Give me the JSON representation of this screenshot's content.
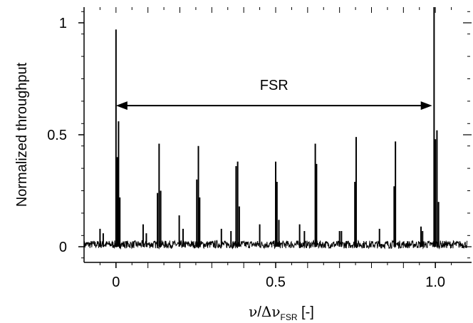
{
  "chart_data": {
    "type": "line",
    "title": "",
    "ylabel": "Normalized throughput",
    "xlabel": {
      "nu": "ν",
      "slash": "/",
      "delta": "Δ",
      "nu2": "ν",
      "sub": "FSR",
      "units": " [-]"
    },
    "xlim": [
      -0.1,
      1.1
    ],
    "ylim": [
      -0.07,
      1.07
    ],
    "x_ticks": [
      {
        "value": 0,
        "label": "0"
      },
      {
        "value": 0.5,
        "label": "0.5"
      },
      {
        "value": 1.0,
        "label": "1.0"
      }
    ],
    "y_ticks": [
      {
        "value": 0,
        "label": "0"
      },
      {
        "value": 0.5,
        "label": "0.5"
      },
      {
        "value": 1,
        "label": "1"
      }
    ],
    "grid": false,
    "noise_floor": 0.01,
    "peaks": [
      {
        "x": 0.0,
        "y": 0.97
      },
      {
        "x": 0.004,
        "y": 0.4
      },
      {
        "x": 0.008,
        "y": 0.56
      },
      {
        "x": 0.012,
        "y": 0.22
      },
      {
        "x": -0.05,
        "y": 0.08
      },
      {
        "x": -0.04,
        "y": 0.06
      },
      {
        "x": 0.085,
        "y": 0.1
      },
      {
        "x": 0.095,
        "y": 0.06
      },
      {
        "x": 0.13,
        "y": 0.24
      },
      {
        "x": 0.135,
        "y": 0.46
      },
      {
        "x": 0.14,
        "y": 0.25
      },
      {
        "x": 0.198,
        "y": 0.14
      },
      {
        "x": 0.21,
        "y": 0.08
      },
      {
        "x": 0.253,
        "y": 0.3
      },
      {
        "x": 0.258,
        "y": 0.45
      },
      {
        "x": 0.262,
        "y": 0.22
      },
      {
        "x": 0.33,
        "y": 0.08
      },
      {
        "x": 0.36,
        "y": 0.07
      },
      {
        "x": 0.376,
        "y": 0.36
      },
      {
        "x": 0.381,
        "y": 0.38
      },
      {
        "x": 0.386,
        "y": 0.18
      },
      {
        "x": 0.45,
        "y": 0.1
      },
      {
        "x": 0.5,
        "y": 0.38
      },
      {
        "x": 0.504,
        "y": 0.29
      },
      {
        "x": 0.51,
        "y": 0.12
      },
      {
        "x": 0.575,
        "y": 0.1
      },
      {
        "x": 0.59,
        "y": 0.07
      },
      {
        "x": 0.624,
        "y": 0.46
      },
      {
        "x": 0.628,
        "y": 0.37
      },
      {
        "x": 0.7,
        "y": 0.07
      },
      {
        "x": 0.706,
        "y": 0.07
      },
      {
        "x": 0.748,
        "y": 0.29
      },
      {
        "x": 0.752,
        "y": 0.49
      },
      {
        "x": 0.825,
        "y": 0.08
      },
      {
        "x": 0.871,
        "y": 0.27
      },
      {
        "x": 0.875,
        "y": 0.47
      },
      {
        "x": 0.955,
        "y": 0.09
      },
      {
        "x": 0.96,
        "y": 0.07
      },
      {
        "x": 0.996,
        "y": 1.07
      },
      {
        "x": 1.0,
        "y": 0.48
      },
      {
        "x": 1.005,
        "y": 0.52
      },
      {
        "x": 1.01,
        "y": 0.2
      }
    ],
    "annotation": {
      "label": "FSR",
      "x_start": 0,
      "x_end": 0.99,
      "y": 0.63
    }
  }
}
